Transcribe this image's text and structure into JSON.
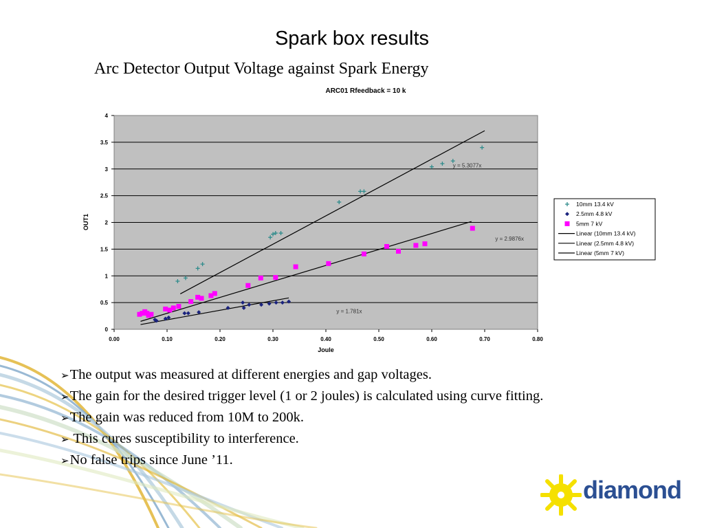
{
  "slide": {
    "title": "Spark box results",
    "subtitle": "Arc Detector Output Voltage against Spark Energy",
    "bullets": [
      "The output was measured at different energies and gap voltages.",
      "The gain for the desired trigger level (1 or 2 joules) is calculated using curve fitting.",
      "The gain was reduced from 10M to 200k.",
      " This cures susceptibility to interference.",
      "No false trips since June ’11."
    ],
    "logo": {
      "text": "diamond",
      "icon": "diamond-starburst-logo-icon",
      "color": "#2b4f92",
      "accent": "#f5e000"
    }
  },
  "chart_data": {
    "type": "scatter",
    "title": "ARC01 Rfeedback = 10 k",
    "xlabel": "Joule",
    "ylabel": "OUT1",
    "xlim": [
      0,
      0.8
    ],
    "ylim": [
      0,
      4
    ],
    "xticks": [
      "0.00",
      "0.10",
      "0.20",
      "0.30",
      "0.40",
      "0.50",
      "0.60",
      "0.70",
      "0.80"
    ],
    "yticks": [
      "0",
      "0.5",
      "1",
      "1.5",
      "2",
      "2.5",
      "3",
      "3.5",
      "4"
    ],
    "plot_background": "#c0c0c0",
    "grid": "horizontal",
    "legend_position": "right",
    "series": [
      {
        "name": "10mm 13.4 kV",
        "marker": "plus",
        "color": "#2e8b8b",
        "points": [
          [
            0.12,
            0.9
          ],
          [
            0.135,
            0.96
          ],
          [
            0.158,
            1.14
          ],
          [
            0.167,
            1.22
          ],
          [
            0.295,
            1.72
          ],
          [
            0.3,
            1.78
          ],
          [
            0.305,
            1.8
          ],
          [
            0.315,
            1.8
          ],
          [
            0.425,
            2.38
          ],
          [
            0.465,
            2.58
          ],
          [
            0.472,
            2.58
          ],
          [
            0.6,
            3.04
          ],
          [
            0.62,
            3.1
          ],
          [
            0.64,
            3.15
          ],
          [
            0.695,
            3.4
          ]
        ]
      },
      {
        "name": "2.5mm 4.8 kV",
        "marker": "diamond",
        "color": "#1a237e",
        "points": [
          [
            0.077,
            0.18
          ],
          [
            0.08,
            0.16
          ],
          [
            0.097,
            0.2
          ],
          [
            0.103,
            0.22
          ],
          [
            0.133,
            0.3
          ],
          [
            0.14,
            0.3
          ],
          [
            0.16,
            0.32
          ],
          [
            0.215,
            0.4
          ],
          [
            0.243,
            0.5
          ],
          [
            0.245,
            0.4
          ],
          [
            0.255,
            0.46
          ],
          [
            0.278,
            0.46
          ],
          [
            0.293,
            0.48
          ],
          [
            0.306,
            0.5
          ],
          [
            0.318,
            0.5
          ],
          [
            0.33,
            0.52
          ]
        ]
      },
      {
        "name": "5mm 7 kV",
        "marker": "square",
        "color": "#ff00ff",
        "points": [
          [
            0.048,
            0.28
          ],
          [
            0.053,
            0.3
          ],
          [
            0.058,
            0.33
          ],
          [
            0.062,
            0.3
          ],
          [
            0.065,
            0.26
          ],
          [
            0.07,
            0.28
          ],
          [
            0.097,
            0.38
          ],
          [
            0.105,
            0.36
          ],
          [
            0.112,
            0.4
          ],
          [
            0.122,
            0.43
          ],
          [
            0.145,
            0.52
          ],
          [
            0.158,
            0.6
          ],
          [
            0.165,
            0.58
          ],
          [
            0.183,
            0.63
          ],
          [
            0.19,
            0.67
          ],
          [
            0.253,
            0.82
          ],
          [
            0.277,
            0.96
          ],
          [
            0.305,
            0.97
          ],
          [
            0.343,
            1.17
          ],
          [
            0.405,
            1.23
          ],
          [
            0.472,
            1.41
          ],
          [
            0.515,
            1.55
          ],
          [
            0.537,
            1.46
          ],
          [
            0.57,
            1.57
          ],
          [
            0.587,
            1.6
          ],
          [
            0.677,
            1.89
          ]
        ]
      }
    ],
    "trendlines": [
      {
        "name": "Linear (10mm 13.4 kV)",
        "slope": 5.3077,
        "x_range": [
          0.125,
          0.7
        ],
        "label": "y = 5.3077x",
        "color": "#000000"
      },
      {
        "name": "Linear (2.5mm 4.8 kV)",
        "slope": 1.781,
        "x_range": [
          0.05,
          0.33
        ],
        "label": "y = 1.781x",
        "color": "#000000"
      },
      {
        "name": "Linear (5mm 7 kV)",
        "slope": 2.9876,
        "x_range": [
          0.05,
          0.675
        ],
        "label": "y = 2.9876x",
        "color": "#000000"
      }
    ]
  }
}
